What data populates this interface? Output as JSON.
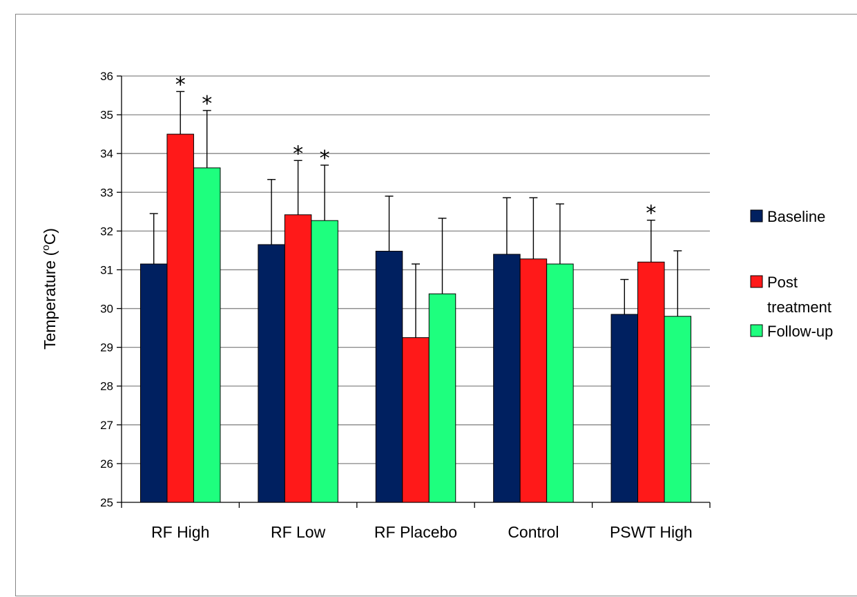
{
  "chart_data": {
    "type": "bar",
    "categories": [
      "RF High",
      "RF Low",
      "RF Placebo",
      "Control",
      "PSWT High"
    ],
    "series": [
      {
        "name": "Baseline",
        "color": "#002060",
        "values": [
          31.15,
          31.65,
          31.48,
          31.4,
          29.85
        ],
        "errors": [
          1.3,
          1.68,
          1.42,
          1.46,
          0.9
        ]
      },
      {
        "name": "Post treatment",
        "color": "#ff1919",
        "values": [
          34.5,
          32.42,
          29.25,
          31.28,
          31.2
        ],
        "errors": [
          1.1,
          1.4,
          1.9,
          1.58,
          1.08
        ]
      },
      {
        "name": "Follow-up",
        "color": "#1eff7e",
        "values": [
          33.63,
          32.27,
          30.38,
          31.15,
          29.8
        ],
        "errors": [
          1.48,
          1.43,
          1.95,
          1.55,
          1.69
        ]
      }
    ],
    "significant": [
      [
        false,
        true,
        true
      ],
      [
        false,
        true,
        true
      ],
      [
        false,
        false,
        false
      ],
      [
        false,
        false,
        false
      ],
      [
        false,
        true,
        false
      ]
    ],
    "significance_marker": "*",
    "ylabel_main": "Temperature (",
    "ylabel_sup": "o",
    "ylabel_end": "C)",
    "ylim": [
      25,
      36
    ],
    "yticks": [
      25,
      26,
      27,
      28,
      29,
      30,
      31,
      32,
      33,
      34,
      35,
      36
    ],
    "grid": true,
    "legend": {
      "placement": "right",
      "items": [
        {
          "lines": [
            "Baseline"
          ],
          "color": "#002060"
        },
        {
          "lines": [
            "Post",
            "treatment"
          ],
          "color": "#ff1919"
        },
        {
          "lines": [
            "Follow-up"
          ],
          "color": "#1eff7e"
        }
      ]
    }
  }
}
